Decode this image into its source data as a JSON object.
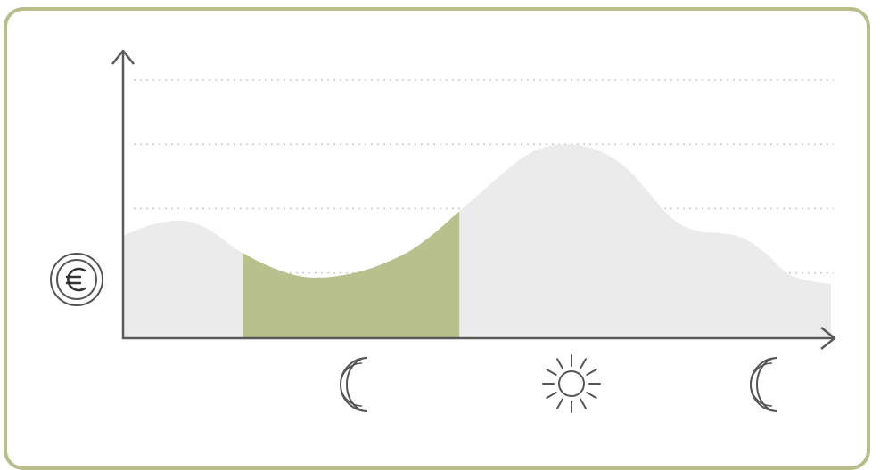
{
  "chart_data": {
    "type": "area",
    "title": "",
    "xlabel": "",
    "ylabel": "",
    "grid": true,
    "y_axis_icon": "euro-coin-icon",
    "x_icons": [
      "crescent-moon-icon",
      "sun-icon",
      "crescent-moon-icon"
    ],
    "curve": {
      "x": [
        0,
        0.5,
        1,
        1.5,
        2,
        2.5,
        3,
        3.5,
        4,
        4.5,
        5,
        5.5,
        6,
        6.5,
        7,
        7.5,
        8,
        8.5,
        9,
        9.5,
        10,
        10.5,
        11,
        11.5,
        12,
        12.5,
        13,
        13.5,
        14,
        14.5,
        15,
        15.5,
        16
      ],
      "y": [
        1.58,
        1.72,
        1.8,
        1.8,
        1.65,
        1.4,
        1.2,
        1.05,
        0.95,
        0.93,
        0.97,
        1.05,
        1.18,
        1.35,
        1.6,
        1.9,
        2.2,
        2.5,
        2.78,
        2.95,
        3.0,
        2.96,
        2.82,
        2.55,
        2.15,
        1.8,
        1.65,
        1.62,
        1.55,
        1.32,
        1.0,
        0.88,
        0.83
      ],
      "fill_color": "#ebebeb"
    },
    "highlight_range": {
      "from": 2.7,
      "to": 7.6,
      "color": "#b8c08e"
    },
    "gridlines_y": [
      1,
      2,
      3,
      4
    ],
    "ylim": [
      0,
      4.2
    ],
    "xlim": [
      0,
      16
    ]
  },
  "colors": {
    "frame": "#b8bd8a",
    "axis": "#5a5a5a",
    "grid": "#c8c8c8",
    "icon": "#555555"
  }
}
